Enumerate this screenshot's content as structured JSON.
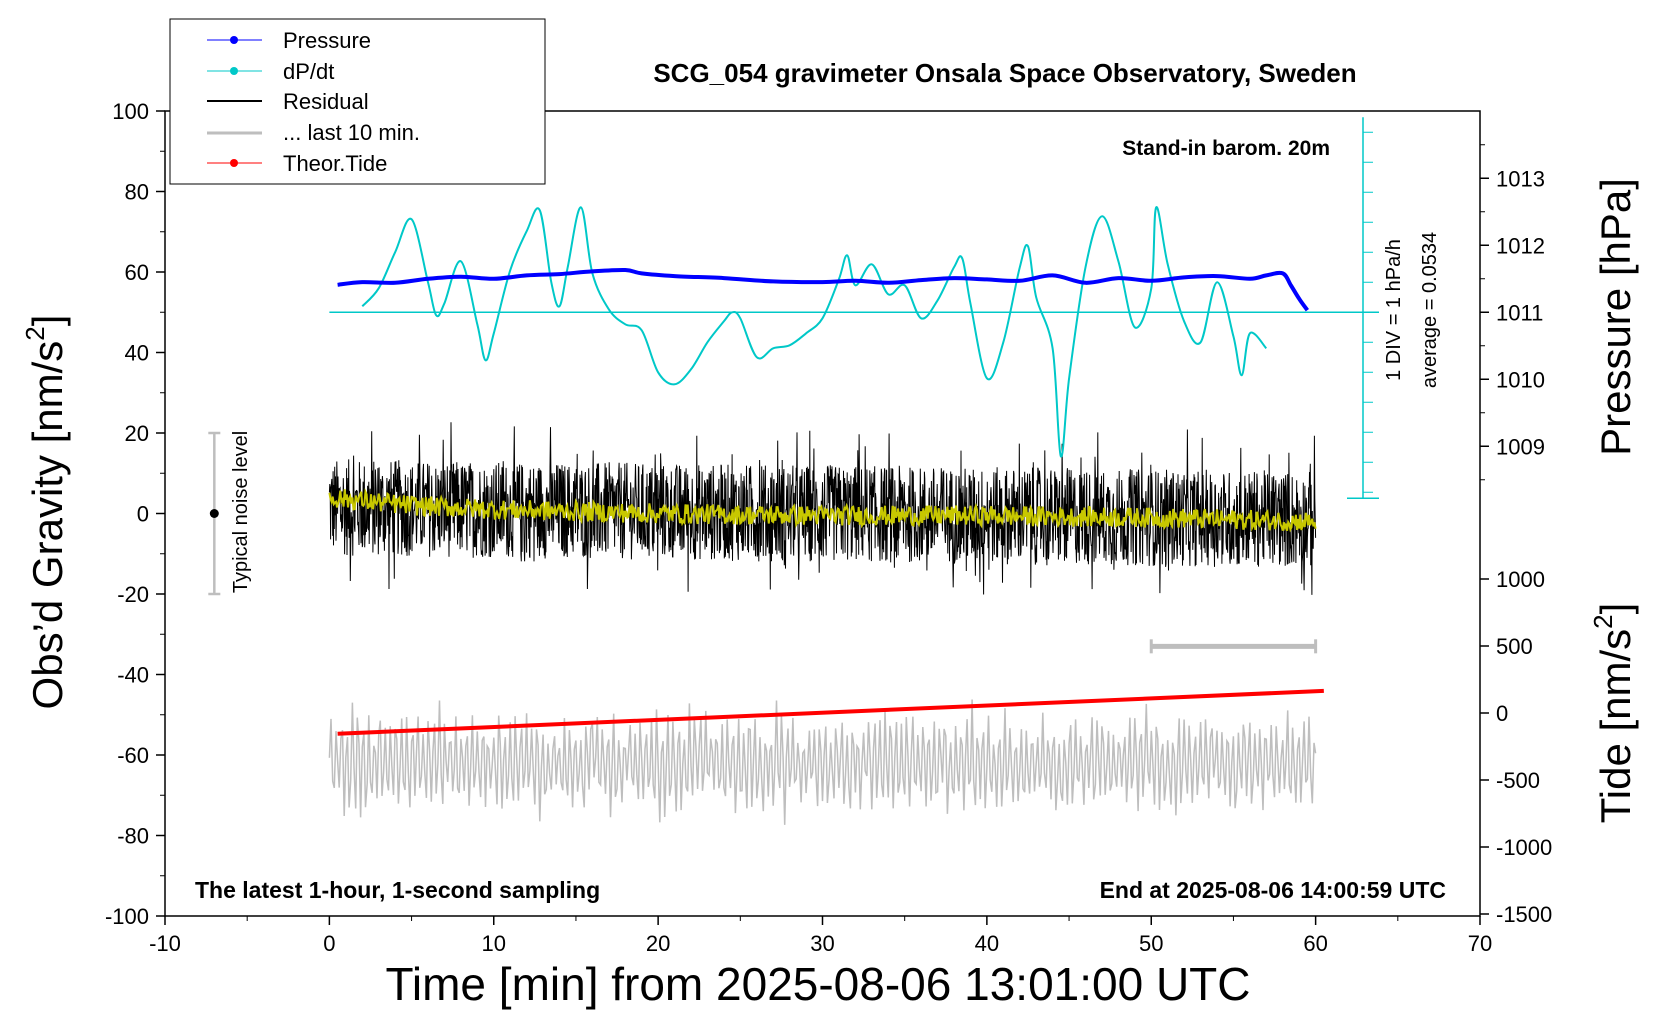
{
  "chart_data": {
    "type": "line",
    "title": "SCG_054 gravimeter Onsala Space Observatory, Sweden",
    "xlabel": "Time [min] from 2025-08-06 13:01:00 UTC",
    "ylabel_left": "Obs’d Gravity [nm/s",
    "ylabel_left_sup": "2",
    "ylabel_left_close": "]",
    "ylabel_right_pressure": "Pressure [hPa]",
    "ylabel_right_tide": "Tide [nm/s",
    "ylabel_right_tide_sup": "2",
    "ylabel_right_tide_close": "]",
    "xlim": [
      -10,
      70
    ],
    "ylim": [
      -100,
      100
    ],
    "x_ticks": [
      "-10",
      "0",
      "10",
      "20",
      "30",
      "40",
      "50",
      "60",
      "70"
    ],
    "y_ticks": [
      "100",
      "80",
      "60",
      "40",
      "20",
      "0",
      "-20",
      "-40",
      "-60",
      "-80",
      "-100"
    ],
    "pressure_ticks": [
      "1013",
      "1012",
      "1011",
      "1010",
      "1009"
    ],
    "pressure_values": [
      1013,
      1012,
      1011,
      1010,
      1009
    ],
    "tide_ticks": [
      "1000",
      "500",
      "0",
      "-500",
      "-1000",
      "-1500"
    ],
    "tide_values": [
      1000,
      500,
      0,
      -500,
      -1000,
      -1500
    ],
    "legend": [
      {
        "label": "Pressure",
        "color": "#0000ff",
        "marker": true
      },
      {
        "label": "dP/dt",
        "color": "#00c8c8",
        "marker": true
      },
      {
        "label": "Residual",
        "color": "#000000",
        "marker": false
      },
      {
        "label": "... last 10 min.",
        "color": "#bebebe",
        "marker": false
      },
      {
        "label": "Theor.Tide",
        "color": "#ff0000",
        "marker": true
      }
    ],
    "annotations": {
      "barometer": "Stand-in barom. 20m",
      "sampling": "The latest 1-hour, 1-second sampling",
      "end_time": "End at 2025-08-06 14:00:59 UTC",
      "noise_label": "Typical noise level",
      "div_label": "1 DIV = 1 hPa/h",
      "average_label": "average = 0.0534"
    },
    "noise_bar": {
      "x": -7,
      "center": 0,
      "low": -20,
      "high": 20
    },
    "last10_bar": {
      "x_start": 50,
      "x_end": 60,
      "y": -33
    },
    "series": [
      {
        "name": "Pressure",
        "color": "#0000ff",
        "axis": "pressure_hPa",
        "x": [
          0.5,
          2,
          4,
          6,
          8,
          10,
          12,
          14,
          16,
          18,
          19,
          21,
          24,
          27,
          30,
          32,
          34,
          36,
          38,
          40,
          42,
          44,
          46,
          48,
          50,
          52,
          54,
          56,
          57,
          58,
          58.5,
          59,
          59.5
        ],
        "values": [
          1011.41,
          1011.45,
          1011.44,
          1011.5,
          1011.53,
          1011.5,
          1011.55,
          1011.57,
          1011.61,
          1011.63,
          1011.58,
          1011.54,
          1011.51,
          1011.46,
          1011.45,
          1011.47,
          1011.44,
          1011.48,
          1011.51,
          1011.49,
          1011.47,
          1011.55,
          1011.44,
          1011.51,
          1011.47,
          1011.52,
          1011.54,
          1011.5,
          1011.55,
          1011.58,
          1011.4,
          1011.2,
          1011.03
        ]
      },
      {
        "name": "dP/dt",
        "color": "#00c8c8",
        "axis": "dPdt_div",
        "x": [
          2,
          3,
          4,
          5,
          6,
          6.5,
          7,
          8,
          9,
          9.5,
          10,
          11,
          12,
          12.8,
          13.5,
          14,
          14.5,
          15.3,
          16,
          17,
          18,
          19,
          20,
          21,
          22,
          23,
          24,
          24.5,
          25,
          26,
          27,
          28,
          29,
          30,
          31,
          31.5,
          32,
          33,
          34,
          35,
          36,
          37,
          38,
          38.5,
          39,
          40,
          41,
          42,
          42.5,
          43,
          44,
          44.5,
          45,
          46,
          47,
          48,
          49,
          50,
          50.3,
          51,
          52,
          53,
          54,
          55,
          55.5,
          56,
          57
        ],
        "values": [
          0.2,
          0.8,
          2.0,
          3.1,
          1.0,
          -0.1,
          0.3,
          1.7,
          -0.4,
          -1.6,
          -0.7,
          1.4,
          2.7,
          3.4,
          1.0,
          0.2,
          1.5,
          3.5,
          1.3,
          0.1,
          -0.4,
          -0.6,
          -2.0,
          -2.4,
          -1.9,
          -1.0,
          -0.3,
          0.0,
          -0.2,
          -1.5,
          -1.2,
          -1.1,
          -0.7,
          -0.2,
          1.1,
          1.9,
          0.9,
          1.6,
          0.6,
          0.9,
          -0.2,
          0.4,
          1.5,
          1.8,
          0.3,
          -2.2,
          -1.0,
          1.5,
          2.2,
          0.5,
          -1.2,
          -4.8,
          -2.2,
          1.5,
          3.2,
          1.7,
          -0.5,
          0.8,
          3.5,
          1.6,
          -0.3,
          -1.0,
          1.0,
          -0.8,
          -2.1,
          -0.7,
          -1.2
        ]
      },
      {
        "name": "Residual",
        "color": "#000000",
        "axis": "gravity",
        "x_range": [
          0,
          60
        ],
        "amplitude": 22
      },
      {
        "name": "Residual smoothed",
        "color": "#c8c800",
        "axis": "gravity",
        "x": [
          0,
          5,
          10,
          15,
          20,
          25,
          30,
          35,
          40,
          45,
          50,
          55,
          60
        ],
        "values": [
          4,
          2,
          1,
          0.5,
          0,
          -0.3,
          -0.5,
          -0.5,
          -0.5,
          -0.8,
          -1,
          -1.5,
          -2
        ]
      },
      {
        "name": "... last 10 min.",
        "color": "#bebebe",
        "axis": "gravity",
        "x_range": [
          0,
          60
        ],
        "center": -62,
        "amplitude": 14
      },
      {
        "name": "Theor.Tide",
        "color": "#ff0000",
        "axis": "tide",
        "x": [
          0.5,
          60.5
        ],
        "values": [
          -155,
          165
        ]
      }
    ]
  }
}
